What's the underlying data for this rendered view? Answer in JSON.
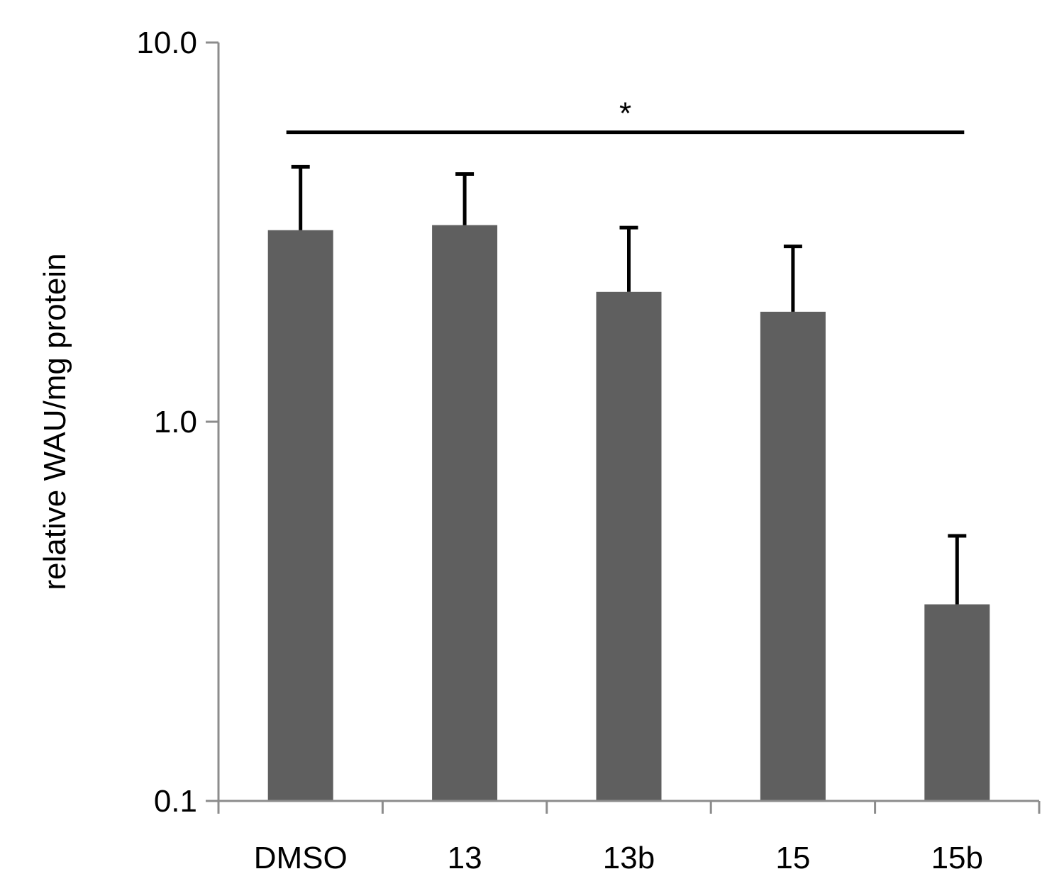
{
  "chart_data": {
    "type": "bar",
    "categories": [
      "DMSO",
      "13",
      "13b",
      "15",
      "15b"
    ],
    "values": [
      3.2,
      3.3,
      2.2,
      1.95,
      0.33
    ],
    "error_upper": [
      4.7,
      4.5,
      3.25,
      2.9,
      0.5
    ],
    "ylabel": "relative WAU/mg protein",
    "xlabel": "",
    "yscale": "log",
    "ylim": [
      0.1,
      10.0
    ],
    "ytick_values": [
      0.1,
      1.0,
      10.0
    ],
    "ytick_labels": [
      "0.1",
      "1.0",
      "10.0"
    ],
    "grid": false,
    "bar_color": "#5f5f5f",
    "significance": {
      "label": "*",
      "from": "DMSO",
      "to": "15b",
      "level": 5.8
    }
  }
}
